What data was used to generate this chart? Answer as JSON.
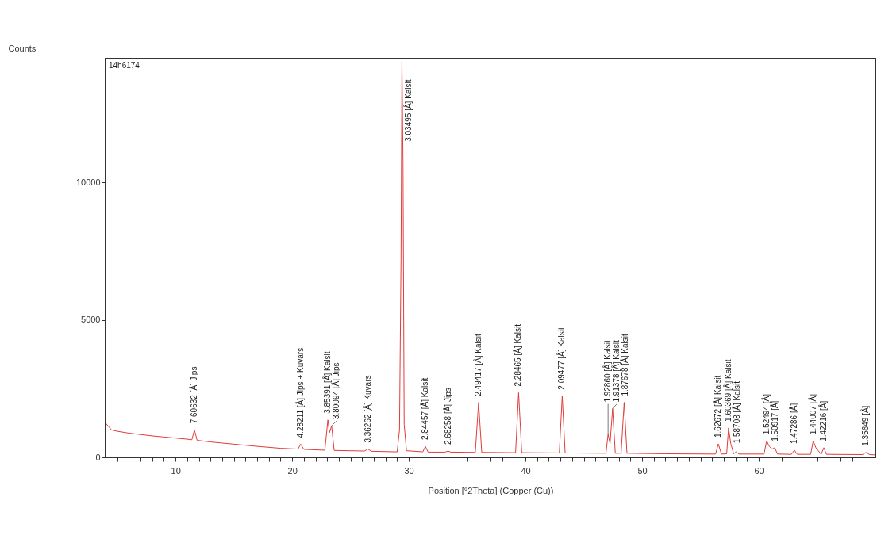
{
  "chart_data": {
    "type": "line",
    "xlabel": "Position [°2Theta] (Copper (Cu))",
    "ylabel": "Counts",
    "xlim": [
      4,
      70
    ],
    "ylim": [
      0,
      14500
    ],
    "xticks": [
      {
        "value": 5,
        "label": null
      },
      {
        "value": 6,
        "label": null
      },
      {
        "value": 7,
        "label": null
      },
      {
        "value": 8,
        "label": null
      },
      {
        "value": 9,
        "label": null
      },
      10,
      {
        "value": 11,
        "label": null
      },
      {
        "value": 12,
        "label": null
      },
      {
        "value": 13,
        "label": null
      },
      {
        "value": 14,
        "label": null
      },
      {
        "value": 15,
        "label": null
      },
      {
        "value": 16,
        "label": null
      },
      {
        "value": 17,
        "label": null
      },
      {
        "value": 18,
        "label": null
      },
      {
        "value": 19,
        "label": null
      },
      20,
      {
        "value": 21,
        "label": null
      },
      {
        "value": 22,
        "label": null
      },
      {
        "value": 23,
        "label": null
      },
      {
        "value": 24,
        "label": null
      },
      {
        "value": 25,
        "label": null
      },
      {
        "value": 26,
        "label": null
      },
      {
        "value": 27,
        "label": null
      },
      {
        "value": 28,
        "label": null
      },
      {
        "value": 29,
        "label": null
      },
      30,
      {
        "value": 31,
        "label": null
      },
      {
        "value": 32,
        "label": null
      },
      {
        "value": 33,
        "label": null
      },
      {
        "value": 34,
        "label": null
      },
      {
        "value": 35,
        "label": null
      },
      {
        "value": 36,
        "label": null
      },
      {
        "value": 37,
        "label": null
      },
      {
        "value": 38,
        "label": null
      },
      {
        "value": 39,
        "label": null
      },
      40,
      {
        "value": 41,
        "label": null
      },
      {
        "value": 42,
        "label": null
      },
      {
        "value": 43,
        "label": null
      },
      {
        "value": 44,
        "label": null
      },
      {
        "value": 45,
        "label": null
      },
      {
        "value": 46,
        "label": null
      },
      {
        "value": 47,
        "label": null
      },
      {
        "value": 48,
        "label": null
      },
      {
        "value": 49,
        "label": null
      },
      50,
      {
        "value": 51,
        "label": null
      },
      {
        "value": 52,
        "label": null
      },
      {
        "value": 53,
        "label": null
      },
      {
        "value": 54,
        "label": null
      },
      {
        "value": 55,
        "label": null
      },
      {
        "value": 56,
        "label": null
      },
      {
        "value": 57,
        "label": null
      },
      {
        "value": 58,
        "label": null
      },
      {
        "value": 59,
        "label": null
      },
      60,
      {
        "value": 61,
        "label": null
      },
      {
        "value": 62,
        "label": null
      },
      {
        "value": 63,
        "label": null
      },
      {
        "value": 64,
        "label": null
      },
      {
        "value": 65,
        "label": null
      },
      {
        "value": 66,
        "label": null
      },
      {
        "value": 67,
        "label": null
      },
      {
        "value": 68,
        "label": null
      },
      {
        "value": 69,
        "label": null
      }
    ],
    "yticks": [
      0,
      5000,
      10000
    ],
    "grid": false,
    "marker": "none",
    "line_style": "solid",
    "x": [
      4,
      4.5,
      5,
      6,
      7,
      8,
      9,
      10,
      11,
      11.4,
      11.62,
      11.85,
      13,
      15,
      17,
      19,
      20.5,
      20.73,
      21,
      22.8,
      23.06,
      23.2,
      23.38,
      23.6,
      26.2,
      26.49,
      26.8,
      29,
      29.2,
      29.33,
      29.41,
      29.5,
      29.6,
      29.8,
      31.2,
      31.42,
      31.65,
      33.1,
      33.37,
      33.6,
      35.7,
      35.98,
      36.25,
      39.15,
      39.41,
      39.68,
      42.9,
      43.15,
      43.4,
      46.9,
      47.08,
      47.25,
      47.47,
      47.7,
      48.2,
      48.46,
      48.7,
      52,
      56.3,
      56.53,
      56.8,
      57.25,
      57.41,
      57.6,
      57.85,
      58.07,
      58.3,
      60.45,
      60.68,
      60.9,
      61.15,
      61.38,
      61.6,
      62.8,
      63.06,
      63.3,
      64.45,
      64.67,
      64.9,
      65.35,
      65.58,
      65.8,
      68.9,
      69.2,
      69.5,
      70
    ],
    "series": [
      {
        "color": "#e03c3c",
        "values": [
          1250,
          1000,
          950,
          880,
          830,
          780,
          740,
          700,
          660,
          640,
          1000,
          620,
          560,
          480,
          400,
          330,
          300,
          480,
          290,
          260,
          1360,
          900,
          1150,
          250,
          230,
          300,
          220,
          200,
          1000,
          7200,
          14400,
          10700,
          1200,
          240,
          200,
          400,
          190,
          190,
          230,
          190,
          180,
          2000,
          180,
          170,
          2350,
          170,
          160,
          2230,
          160,
          150,
          840,
          500,
          1770,
          150,
          150,
          2000,
          150,
          130,
          120,
          490,
          120,
          130,
          1070,
          500,
          130,
          200,
          120,
          120,
          600,
          400,
          300,
          350,
          120,
          110,
          260,
          110,
          110,
          600,
          350,
          110,
          350,
          110,
          100,
          180,
          100,
          90
        ]
      }
    ],
    "annotations": [
      "14h6174",
      {
        "text": "7.60632 [Å] Jips",
        "x": 11.62,
        "y": 1000
      },
      {
        "text": "4.28211 [Å] Jips + Kuvars",
        "x": 20.73,
        "y": 480
      },
      {
        "text": "3.85391 [Å] Kalsit",
        "x": 23.06,
        "y": 1360
      },
      {
        "text": "3.80094 [Å] Jips",
        "x": 23.38,
        "y": 1150
      },
      {
        "text": "3.36262 [Å] Kuvars",
        "x": 26.49,
        "y": 300
      },
      {
        "text": "3.03495 [Å] Kalsit",
        "x": 29.41,
        "y": 14400
      },
      {
        "text": "2.84457 [Å] Kalsit",
        "x": 31.42,
        "y": 400
      },
      {
        "text": "2.68258 [Å] Jips",
        "x": 33.37,
        "y": 230
      },
      {
        "text": "2.49417 [Å] Kalsit",
        "x": 35.98,
        "y": 2000
      },
      {
        "text": "2.28465 [Å] Kalsit",
        "x": 39.41,
        "y": 2350
      },
      {
        "text": "2.09477 [Å] Kalsit",
        "x": 43.15,
        "y": 2230
      },
      {
        "text": "1.92860 [Å] Kalsit",
        "x": 47.08,
        "y": 840
      },
      {
        "text": "1.91378 [Å] Kalsit",
        "x": 47.47,
        "y": 1770
      },
      {
        "text": "1.87678 [Å] Kalsit",
        "x": 48.46,
        "y": 2000
      },
      {
        "text": "1.62672 [Å] Kalsit",
        "x": 56.53,
        "y": 490
      },
      {
        "text": "1.60369 [Å] Kalsit",
        "x": 57.41,
        "y": 1070
      },
      {
        "text": "1.58708 [Å] Kalsit",
        "x": 58.07,
        "y": 200
      },
      {
        "text": "1.52494 [Å]",
        "x": 60.68,
        "y": 600
      },
      {
        "text": "1.50917 [Å]",
        "x": 61.38,
        "y": 350
      },
      {
        "text": "1.47286 [Å]",
        "x": 63.06,
        "y": 260
      },
      {
        "text": "1.44007 [Å]",
        "x": 64.67,
        "y": 600
      },
      {
        "text": "1.42216 [Å]",
        "x": 65.58,
        "y": 350
      },
      {
        "text": "1.35649 [Å]",
        "x": 69.2,
        "y": 180
      }
    ]
  }
}
